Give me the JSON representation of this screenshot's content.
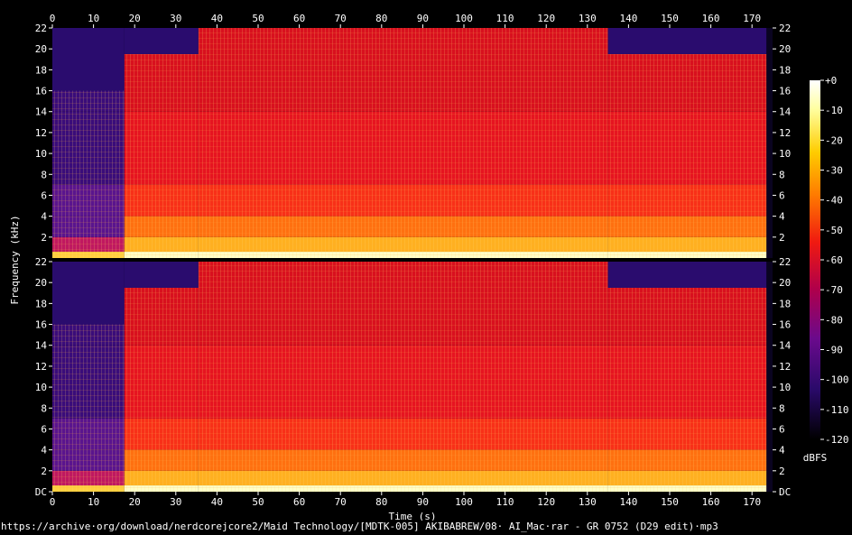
{
  "chart_data": {
    "type": "heatmap",
    "xlabel": "Time (s)",
    "ylabel": "Frequency (kHz)",
    "x_ticks": [
      "0",
      "10",
      "20",
      "30",
      "40",
      "50",
      "60",
      "70",
      "80",
      "90",
      "100",
      "110",
      "120",
      "130",
      "140",
      "150",
      "160",
      "170"
    ],
    "xlim": [
      0,
      175
    ],
    "channels": [
      {
        "y_ticks": [
          "22",
          "20",
          "18",
          "16",
          "14",
          "12",
          "10",
          "8",
          "6",
          "4",
          "2"
        ]
      },
      {
        "y_ticks": [
          "22",
          "20",
          "18",
          "16",
          "14",
          "12",
          "10",
          "8",
          "6",
          "4",
          "2",
          "DC"
        ]
      }
    ],
    "ylim_khz": [
      0,
      22
    ],
    "colorbar": {
      "label": "dBFS",
      "ticks": [
        "+0",
        "-10",
        "-20",
        "-30",
        "-40",
        "-50",
        "-60",
        "-70",
        "-80",
        "-90",
        "-100",
        "-110",
        "-120"
      ],
      "range": [
        -120,
        0
      ]
    },
    "segments": [
      {
        "t_start": 0,
        "t_end": 17.5,
        "cutoff_khz": 16,
        "level": "quiet"
      },
      {
        "t_start": 17.5,
        "t_end": 35.5,
        "cutoff_khz": 19.5,
        "level": "loud"
      },
      {
        "t_start": 35.5,
        "t_end": 135,
        "cutoff_khz": 22,
        "level": "loud"
      },
      {
        "t_start": 135,
        "t_end": 173.5,
        "cutoff_khz": 19.5,
        "level": "loud"
      }
    ],
    "colors": {
      "background": "#000000",
      "low": "#1a0640",
      "mid": "#e0001e",
      "high": "#ffffe0"
    }
  },
  "source_path": "https://archive·org/download/nerdcorejcore2/Maid Technology/[MDTK-005] AKIBABREW/08· AI_Mac·rar - GR 0752 (D29 edit)·mp3"
}
